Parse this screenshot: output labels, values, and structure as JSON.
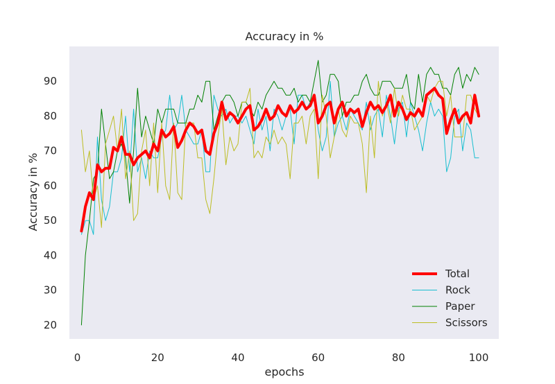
{
  "chart_data": {
    "type": "line",
    "title": "Accuracy in %",
    "xlabel": "epochs",
    "ylabel": "Accuracy in %",
    "xlim": [
      -2,
      105
    ],
    "ylim": [
      16,
      100
    ],
    "x_ticks": [
      0,
      20,
      40,
      60,
      80,
      100
    ],
    "y_ticks": [
      20,
      30,
      40,
      50,
      60,
      70,
      80,
      90
    ],
    "grid": false,
    "legend_position": "lower-right",
    "background_color": "#eaeaf2",
    "x": [
      1,
      2,
      3,
      4,
      5,
      6,
      7,
      8,
      9,
      10,
      11,
      12,
      13,
      14,
      15,
      16,
      17,
      18,
      19,
      20,
      21,
      22,
      23,
      24,
      25,
      26,
      27,
      28,
      29,
      30,
      31,
      32,
      33,
      34,
      35,
      36,
      37,
      38,
      39,
      40,
      41,
      42,
      43,
      44,
      45,
      46,
      47,
      48,
      49,
      50,
      51,
      52,
      53,
      54,
      55,
      56,
      57,
      58,
      59,
      60,
      61,
      62,
      63,
      64,
      65,
      66,
      67,
      68,
      69,
      70,
      71,
      72,
      73,
      74,
      75,
      76,
      77,
      78,
      79,
      80,
      81,
      82,
      83,
      84,
      85,
      86,
      87,
      88,
      89,
      90,
      91,
      92,
      93,
      94,
      95,
      96,
      97,
      98,
      99,
      100
    ],
    "series": [
      {
        "name": "Total",
        "color": "#ff0000",
        "width": 4,
        "values": [
          47,
          54,
          58,
          56,
          66,
          64,
          65,
          65,
          71,
          70,
          74,
          69,
          69,
          66,
          68,
          69,
          70,
          68,
          72,
          70,
          76,
          74,
          75,
          77,
          71,
          73,
          76,
          78,
          77,
          75,
          76,
          70,
          69,
          75,
          78,
          84,
          79,
          81,
          80,
          78,
          80,
          82,
          83,
          76,
          77,
          79,
          82,
          79,
          80,
          83,
          81,
          80,
          83,
          81,
          82,
          84,
          82,
          83,
          86,
          78,
          80,
          83,
          84,
          78,
          82,
          84,
          80,
          82,
          81,
          82,
          77,
          81,
          84,
          82,
          83,
          81,
          83,
          86,
          80,
          84,
          82,
          79,
          81,
          80,
          82,
          80,
          86,
          87,
          88,
          86,
          85,
          75,
          79,
          82,
          78,
          80,
          81,
          78,
          86,
          80
        ]
      },
      {
        "name": "Rock",
        "color": "#17becf",
        "width": 1,
        "values": [
          46,
          50,
          50,
          46,
          74,
          56,
          50,
          54,
          64,
          64,
          68,
          80,
          64,
          82,
          64,
          68,
          62,
          70,
          68,
          68,
          74,
          76,
          86,
          76,
          78,
          86,
          76,
          74,
          72,
          72,
          76,
          64,
          64,
          86,
          82,
          80,
          82,
          78,
          80,
          80,
          78,
          80,
          76,
          72,
          82,
          76,
          80,
          70,
          82,
          80,
          76,
          80,
          82,
          72,
          86,
          86,
          82,
          84,
          86,
          76,
          70,
          74,
          90,
          74,
          78,
          80,
          76,
          82,
          80,
          78,
          76,
          84,
          76,
          80,
          82,
          74,
          86,
          80,
          72,
          82,
          84,
          74,
          84,
          80,
          76,
          70,
          78,
          84,
          80,
          82,
          80,
          64,
          68,
          80,
          82,
          70,
          78,
          76,
          68,
          68
        ]
      },
      {
        "name": "Paper",
        "color": "#008000",
        "width": 1,
        "values": [
          20,
          40,
          50,
          62,
          64,
          82,
          72,
          62,
          64,
          70,
          72,
          68,
          55,
          70,
          88,
          74,
          80,
          76,
          72,
          82,
          78,
          82,
          82,
          82,
          78,
          78,
          78,
          82,
          82,
          86,
          84,
          90,
          90,
          76,
          80,
          84,
          86,
          86,
          84,
          80,
          84,
          84,
          82,
          80,
          84,
          82,
          86,
          88,
          90,
          88,
          88,
          86,
          86,
          88,
          84,
          86,
          86,
          84,
          90,
          96,
          84,
          86,
          92,
          92,
          90,
          80,
          84,
          84,
          86,
          86,
          90,
          92,
          88,
          86,
          86,
          90,
          90,
          90,
          88,
          88,
          88,
          92,
          84,
          82,
          92,
          84,
          92,
          94,
          92,
          92,
          88,
          88,
          86,
          92,
          94,
          88,
          92,
          90,
          94,
          92
        ]
      },
      {
        "name": "Scissors",
        "color": "#bcbd22",
        "width": 1,
        "values": [
          76,
          64,
          70,
          56,
          60,
          48,
          72,
          76,
          80,
          70,
          82,
          62,
          70,
          50,
          52,
          70,
          76,
          60,
          78,
          58,
          78,
          60,
          56,
          78,
          58,
          56,
          78,
          78,
          78,
          68,
          68,
          56,
          52,
          62,
          74,
          82,
          66,
          74,
          70,
          72,
          84,
          84,
          88,
          68,
          70,
          68,
          74,
          72,
          76,
          72,
          74,
          72,
          62,
          78,
          78,
          80,
          72,
          80,
          82,
          62,
          86,
          80,
          68,
          74,
          82,
          76,
          74,
          80,
          78,
          78,
          72,
          58,
          80,
          68,
          90,
          80,
          84,
          78,
          88,
          80,
          86,
          82,
          82,
          76,
          78,
          80,
          86,
          84,
          88,
          90,
          90,
          80,
          86,
          74,
          74,
          74,
          86,
          86,
          82,
          80
        ]
      }
    ]
  }
}
